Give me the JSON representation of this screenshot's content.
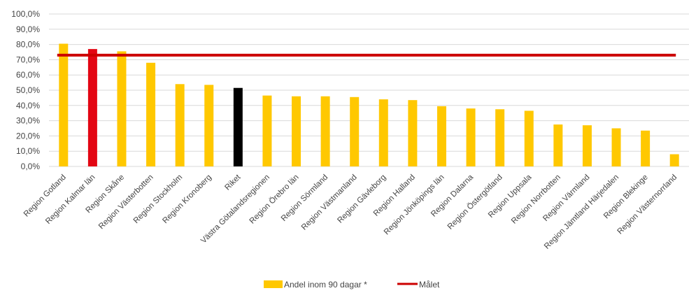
{
  "chart_data": {
    "type": "bar",
    "title": "",
    "xlabel": "",
    "ylabel": "",
    "ylim": [
      0,
      100
    ],
    "ytick_step": 10,
    "ytick_format": "0,0%",
    "grid": true,
    "legend_position": "bottom",
    "categories": [
      "Region Gotland",
      "Region Kalmar län",
      "Region Skåne",
      "Region Västerbotten",
      "Region Stockholm",
      "Region Kronoberg",
      "Riket",
      "Västra Götalandsregionen",
      "Region Örebro län",
      "Region Sörmland",
      "Region Västmanland",
      "Region Gävleborg",
      "Region Halland",
      "Region Jönköpings län",
      "Region Dalarna",
      "Region Östergötland",
      "Region Uppsala",
      "Region Norrbotten",
      "Region Värmland",
      "Region Jämtland Härjedalen",
      "Region Blekinge",
      "Region Västernorrland"
    ],
    "series": [
      {
        "name": "Andel inom 90 dagar *",
        "color": "#FFC800",
        "values": [
          80.5,
          77.0,
          75.5,
          68.0,
          54.0,
          53.5,
          51.5,
          46.5,
          46.0,
          46.0,
          45.5,
          44.0,
          43.5,
          39.5,
          38.0,
          37.5,
          36.5,
          27.5,
          27.0,
          25.0,
          23.5,
          8.0
        ],
        "highlights": [
          {
            "category": "Region Kalmar län",
            "color": "#E30613"
          },
          {
            "category": "Riket",
            "color": "#000000"
          }
        ]
      }
    ],
    "target_line": {
      "name": "Målet",
      "value": 73,
      "color": "#CC0000"
    }
  }
}
